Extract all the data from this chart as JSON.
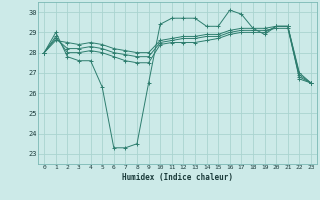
{
  "xlabel": "Humidex (Indice chaleur)",
  "background_color": "#cceae8",
  "grid_color": "#aad4d0",
  "line_color": "#2d7d6e",
  "xlim": [
    -0.5,
    23.5
  ],
  "ylim": [
    22.5,
    30.5
  ],
  "xticks": [
    0,
    1,
    2,
    3,
    4,
    5,
    6,
    7,
    8,
    9,
    10,
    11,
    12,
    13,
    14,
    15,
    16,
    17,
    18,
    19,
    20,
    21,
    22,
    23
  ],
  "yticks": [
    23,
    24,
    25,
    26,
    27,
    28,
    29,
    30
  ],
  "series": [
    [
      28.0,
      29.0,
      27.8,
      27.6,
      27.6,
      26.3,
      23.3,
      23.3,
      23.5,
      26.5,
      29.4,
      29.7,
      29.7,
      29.7,
      29.3,
      29.3,
      30.1,
      29.9,
      29.2,
      28.9,
      29.3,
      29.3,
      27.0,
      26.5
    ],
    [
      28.0,
      28.8,
      28.0,
      28.0,
      28.1,
      28.0,
      27.8,
      27.6,
      27.5,
      27.5,
      28.4,
      28.5,
      28.5,
      28.5,
      28.6,
      28.7,
      28.9,
      29.0,
      29.0,
      29.0,
      29.3,
      29.3,
      26.7,
      26.5
    ],
    [
      28.0,
      28.7,
      28.2,
      28.2,
      28.3,
      28.2,
      28.0,
      27.9,
      27.8,
      27.8,
      28.5,
      28.6,
      28.7,
      28.7,
      28.8,
      28.8,
      29.0,
      29.1,
      29.1,
      29.1,
      29.2,
      29.2,
      26.8,
      26.5
    ],
    [
      28.0,
      28.6,
      28.5,
      28.4,
      28.5,
      28.4,
      28.2,
      28.1,
      28.0,
      28.0,
      28.6,
      28.7,
      28.8,
      28.8,
      28.9,
      28.9,
      29.1,
      29.2,
      29.2,
      29.2,
      29.3,
      29.3,
      26.9,
      26.5
    ]
  ]
}
